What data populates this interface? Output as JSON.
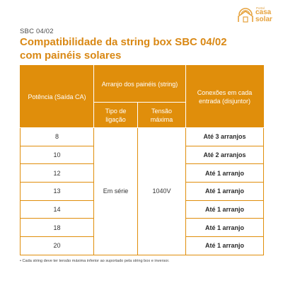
{
  "doc_label": "SBC 04/02",
  "logo": {
    "small": "Portal",
    "line1": "casa",
    "line2": "solar",
    "icon": "sun-house-logo"
  },
  "title_line1": "Compatibilidade da string box SBC 04/02",
  "title_line2": "com painéis solares",
  "table": {
    "header_power": "Potência (Saída CA)",
    "header_arrangement": "Arranjo dos painéis (string)",
    "header_connection_type": "Tipo de ligação",
    "header_max_voltage": "Tensão máxima",
    "header_connections": "Conexões em cada entrada (disjuntor)",
    "connection_type_value": "Em série",
    "max_voltage_value": "1040V",
    "rows": [
      {
        "power": "8",
        "connections": "Até 3 arranjos"
      },
      {
        "power": "10",
        "connections": "Até 2 arranjos"
      },
      {
        "power": "12",
        "connections": "Até 1 arranjo"
      },
      {
        "power": "13",
        "connections": "Até 1 arranjo"
      },
      {
        "power": "14",
        "connections": "Até 1 arranjo"
      },
      {
        "power": "18",
        "connections": "Até 1 arranjo"
      },
      {
        "power": "20",
        "connections": "Até 1 arranjo"
      }
    ]
  },
  "footnote": "• Cada string deve ter tensão máxima inferior ao suportado pela string box e inversor.",
  "colors": {
    "accent": "#e08e0b",
    "title": "#d98814",
    "logo": "#e6a23c"
  }
}
